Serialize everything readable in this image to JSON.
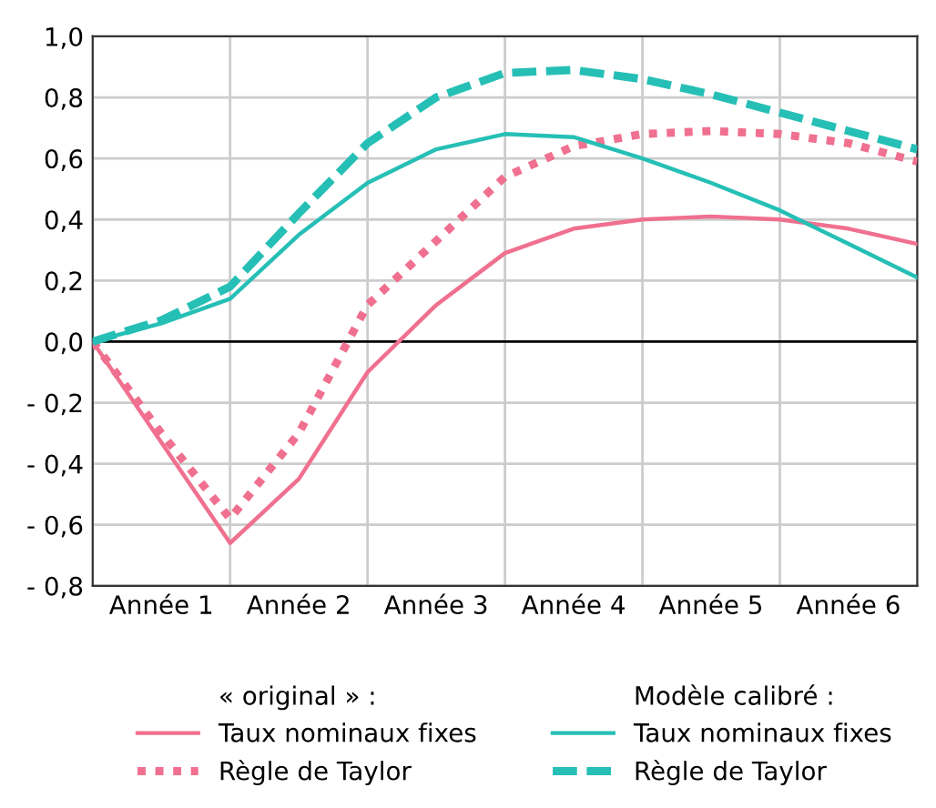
{
  "chart_data": {
    "type": "line",
    "categories": [
      null,
      "Année 1",
      null,
      "Année 2",
      null,
      "Année 3",
      null,
      "Année 4",
      null,
      "Année 5",
      null,
      "Année 6",
      null
    ],
    "series": [
      {
        "name": "Taux nominaux fixes",
        "color": "#f0708f",
        "line_style": "solid",
        "values": [
          0,
          -0.33,
          -0.66,
          -0.45,
          -0.1,
          0.12,
          0.29,
          0.37,
          0.4,
          0.41,
          0.4,
          0.37,
          0.32
        ]
      },
      {
        "name": "Règle de Taylor",
        "color": "#f0708f",
        "line_style": "dotted",
        "values": [
          0,
          -0.3,
          -0.58,
          -0.3,
          0.12,
          0.33,
          0.54,
          0.64,
          0.68,
          0.69,
          0.68,
          0.65,
          0.59
        ]
      },
      {
        "name": "Taux nominaux fixes",
        "color": "#26bfb5",
        "line_style": "solid",
        "values": [
          0,
          0.06,
          0.14,
          0.35,
          0.52,
          0.63,
          0.68,
          0.67,
          0.6,
          0.52,
          0.43,
          0.32,
          0.21
        ]
      },
      {
        "name": "Règle de Taylor",
        "color": "#26bfb5",
        "line_style": "dashed",
        "values": [
          0,
          0.07,
          0.18,
          0.42,
          0.65,
          0.8,
          0.88,
          0.89,
          0.86,
          0.81,
          0.75,
          0.69,
          0.63
        ]
      }
    ],
    "annotations": [
      "« original » :",
      "Modèle calibré :"
    ],
    "ylim": [
      -0.8,
      1.0
    ],
    "yticks": [
      {
        "value": -0.8,
        "label": "- 0,8"
      },
      {
        "value": -0.6,
        "label": "- 0,6"
      },
      {
        "value": -0.4,
        "label": "- 0,4"
      },
      {
        "value": -0.2,
        "label": "- 0,2"
      },
      {
        "value": 0,
        "label": "0,0"
      },
      {
        "value": 0.2,
        "label": "0,2"
      },
      {
        "value": 0.4,
        "label": "0,4"
      },
      {
        "value": 0.6,
        "label": "0,6"
      },
      {
        "value": 0.8,
        "label": "0,8"
      },
      {
        "value": 1.0,
        "label": "1,0"
      }
    ],
    "ref_lines": [
      {
        "axis": "y",
        "value": 0,
        "color": "#000000"
      }
    ],
    "grid": true,
    "legend": "bottom",
    "marker": "none"
  }
}
